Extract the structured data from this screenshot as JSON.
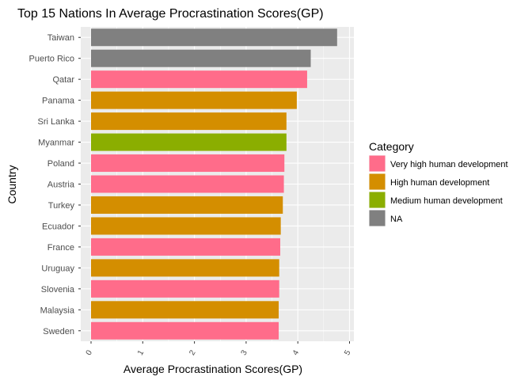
{
  "chart_data": {
    "type": "bar",
    "orientation": "horizontal",
    "title": "Top 15 Nations In Average Procrastination Scores(GP)",
    "xlabel": "Average Procrastination Scores(GP)",
    "ylabel": "Country",
    "xlim": [
      0,
      5
    ],
    "x_ticks": [
      "0",
      "1",
      "2",
      "3",
      "4",
      "5"
    ],
    "grid": true,
    "legend": {
      "title": "Category",
      "position": "right",
      "entries": [
        {
          "label": "Very high human development",
          "color": "#FF6C8A"
        },
        {
          "label": "High human development",
          "color": "#D48E00"
        },
        {
          "label": "Medium human development",
          "color": "#8BAE00"
        },
        {
          "label": "NA",
          "color": "#808080"
        }
      ]
    },
    "categories": [
      "Taiwan",
      "Puerto Rico",
      "Qatar",
      "Panama",
      "Sri Lanka",
      "Myanmar",
      "Poland",
      "Austria",
      "Turkey",
      "Ecuador",
      "France",
      "Uruguay",
      "Slovenia",
      "Malaysia",
      "Sweden"
    ],
    "values": [
      4.76,
      4.25,
      4.18,
      3.98,
      3.78,
      3.78,
      3.74,
      3.73,
      3.71,
      3.67,
      3.66,
      3.64,
      3.64,
      3.63,
      3.63
    ],
    "category_of_bar": [
      "NA",
      "NA",
      "Very high human development",
      "High human development",
      "High human development",
      "Medium human development",
      "Very high human development",
      "Very high human development",
      "High human development",
      "High human development",
      "Very high human development",
      "High human development",
      "Very high human development",
      "High human development",
      "Very high human development"
    ]
  }
}
